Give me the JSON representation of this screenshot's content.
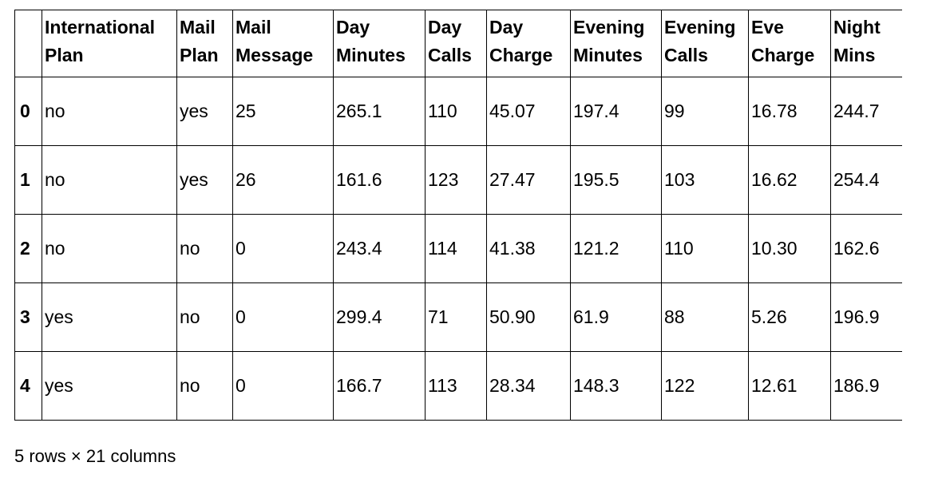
{
  "table": {
    "index_header": "",
    "columns": [
      "International Plan",
      "Mail Plan",
      "Mail Message",
      "Day Minutes",
      "Day Calls",
      "Day Charge",
      "Evening Minutes",
      "Evening Calls",
      "Eve Charge",
      "Night Mins"
    ],
    "rows": [
      {
        "index": "0",
        "cells": [
          "no",
          "yes",
          "25",
          "265.1",
          "110",
          "45.07",
          "197.4",
          "99",
          "16.78",
          "244.7"
        ]
      },
      {
        "index": "1",
        "cells": [
          "no",
          "yes",
          "26",
          "161.6",
          "123",
          "27.47",
          "195.5",
          "103",
          "16.62",
          "254.4"
        ]
      },
      {
        "index": "2",
        "cells": [
          "no",
          "no",
          "0",
          "243.4",
          "114",
          "41.38",
          "121.2",
          "110",
          "10.30",
          "162.6"
        ]
      },
      {
        "index": "3",
        "cells": [
          "yes",
          "no",
          "0",
          "299.4",
          "71",
          "50.90",
          "61.9",
          "88",
          "5.26",
          "196.9"
        ]
      },
      {
        "index": "4",
        "cells": [
          "yes",
          "no",
          "0",
          "166.7",
          "113",
          "28.34",
          "148.3",
          "122",
          "12.61",
          "186.9"
        ]
      }
    ]
  },
  "footer": {
    "summary": "5 rows × 21 columns"
  }
}
